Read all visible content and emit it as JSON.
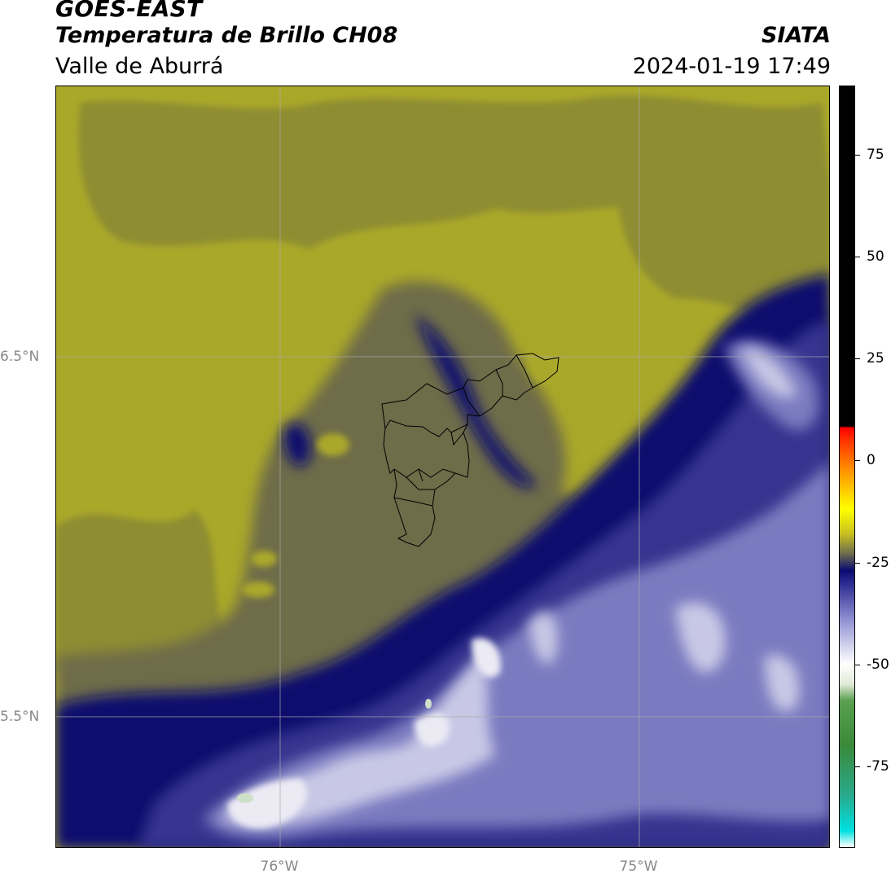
{
  "header": {
    "satellite": "GOES-EAST",
    "product": "Temperatura de Brillo CH08",
    "region": "Valle de Aburrá",
    "agency": "SIATA",
    "timestamp": "2024-01-19 17:49"
  },
  "axes": {
    "lat_labels": [
      {
        "label": "6.5°N",
        "value": 6.5
      },
      {
        "label": "5.5°N",
        "value": 5.5
      }
    ],
    "lon_labels": [
      {
        "label": "76°W",
        "value": -76
      },
      {
        "label": "75°W",
        "value": -75
      }
    ]
  },
  "colorbar": {
    "min": -95,
    "max": 92,
    "ticks": [
      75,
      50,
      25,
      0,
      -25,
      -50,
      -75
    ],
    "tick_labels": [
      "75",
      "50",
      "25",
      "0",
      "-25",
      "-50",
      "-75"
    ],
    "stops": [
      {
        "v": -95,
        "c": "#ffffff"
      },
      {
        "v": -91,
        "c": "#00e0e0"
      },
      {
        "v": -82,
        "c": "#2aa88a"
      },
      {
        "v": -70,
        "c": "#3a8a3a"
      },
      {
        "v": -59,
        "c": "#5aa050"
      },
      {
        "v": -55,
        "c": "#e0ead8"
      },
      {
        "v": -50,
        "c": "#ffffff"
      },
      {
        "v": -40,
        "c": "#9a9ad8"
      },
      {
        "v": -30,
        "c": "#2a2a90"
      },
      {
        "v": -27,
        "c": "#0a0a70"
      },
      {
        "v": -23,
        "c": "#6a6a50"
      },
      {
        "v": -18,
        "c": "#c8c020"
      },
      {
        "v": -12,
        "c": "#ffff00"
      },
      {
        "v": -3,
        "c": "#ff9900"
      },
      {
        "v": 5,
        "c": "#ff3300"
      },
      {
        "v": 8,
        "c": "#ff0000"
      },
      {
        "v": 8.5,
        "c": "#000000"
      },
      {
        "v": 92,
        "c": "#000000"
      }
    ]
  },
  "map_colors": {
    "warm_yellow": "#aaa829",
    "olive": "#8e8d32",
    "grey_olive": "#6e6c48",
    "dark_navy": "#0e0e6e",
    "blue": "#35358f",
    "light_blue": "#7a7ac0",
    "pale": "#c8c8e6",
    "white": "#ecebf4",
    "pale_green": "#cfe0c8"
  }
}
